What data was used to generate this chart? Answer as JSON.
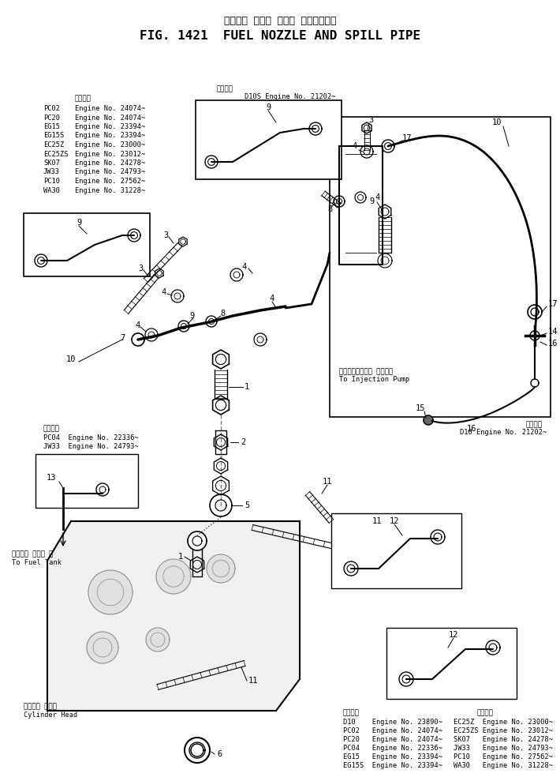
{
  "title_jp": "フェエル ノズル および スピルパイプ",
  "title_en": "FIG. 1421  FUEL NOZZLE AND SPILL PIPE",
  "bg_color": "#ffffff",
  "lc": "#000000",
  "top_left_header": "適用号等",
  "top_left_models": [
    [
      "PC02",
      "Engine No. 24074~"
    ],
    [
      "PC20",
      "Engine No. 24074~"
    ],
    [
      "EG15",
      "Engine No. 23394~"
    ],
    [
      "EG15S",
      "Engine No. 23394~"
    ],
    [
      "EC25Z",
      "Engine No. 23000~"
    ],
    [
      "EC25ZS",
      "Engine No. 23012~"
    ],
    [
      "SK07",
      "Engine No. 24278~"
    ],
    [
      "JW33",
      "Engine No. 24793~"
    ],
    [
      "PC10",
      "Engine No. 27562~"
    ],
    [
      "WA30",
      "Engine No. 31228~"
    ]
  ],
  "top_right_app": "D10S Engine No. 21202~",
  "bottom_left_header": "適用号等",
  "bottom_left_models": [
    [
      "PC04",
      "Engine No. 22336~"
    ],
    [
      "JW33",
      "Engine No. 24793~"
    ]
  ],
  "right_box_app": "D10 Engine No. 21202~",
  "bottom_app_lines": [
    [
      "D10",
      "23890~",
      "EC25Z",
      "23000~"
    ],
    [
      "PC02",
      "24074~",
      "EC25ZS",
      "23012~"
    ],
    [
      "PC20",
      "24074~",
      "SK07",
      "24278~"
    ],
    [
      "PC04",
      "22336~",
      "JW33",
      "24793~"
    ],
    [
      "EG15",
      "23394~",
      "PC10",
      "27562~"
    ],
    [
      "EG15S",
      "23394~",
      "WA30",
      "31228~"
    ]
  ],
  "label_fuel_tank_jp": "フェエル タンク へ",
  "label_fuel_tank_en": "To Fuel Tank",
  "label_cylinder_jp": "シリンダ ヘット",
  "label_cylinder_en": "Cylinder Head",
  "label_injection_jp": "インジェクション ポンプへ",
  "label_injection_en": "To Injection Pump",
  "app_header2": "適用号等",
  "app_header3": "適用号等"
}
